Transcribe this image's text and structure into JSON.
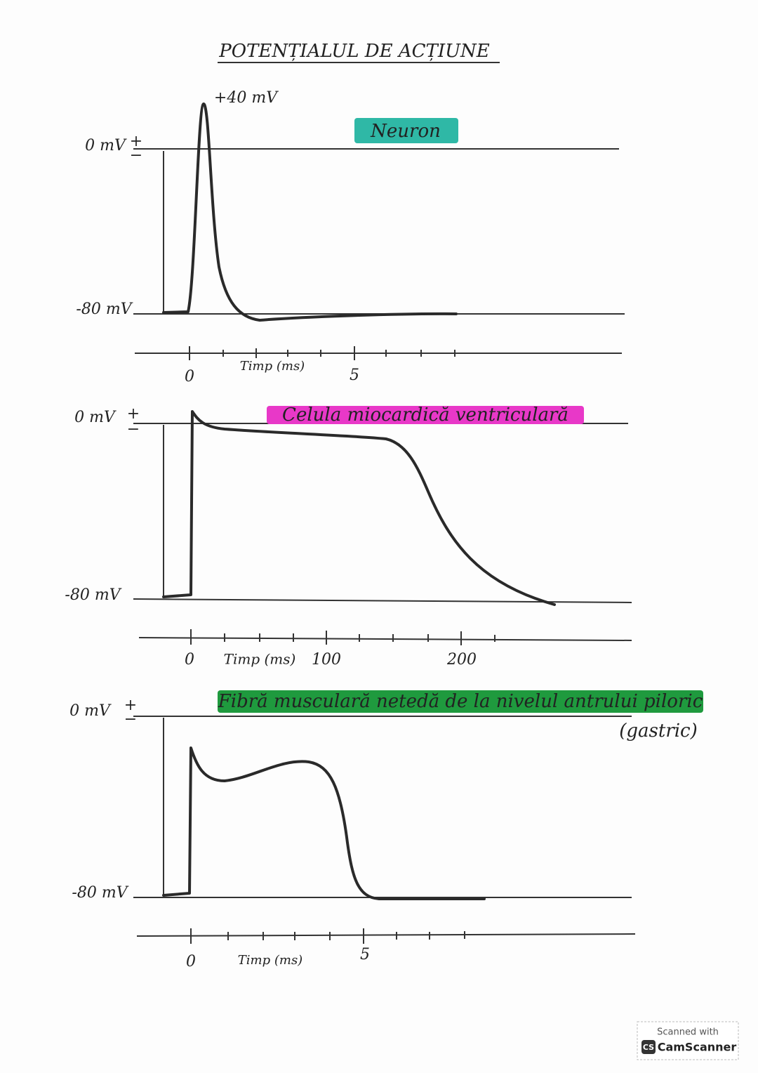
{
  "title": "POTENȚIALUL DE ACȚIUNE",
  "panels": [
    {
      "label": "Neuron",
      "peak_label": "+40 mV",
      "y_labels": [
        "0 mV",
        "-80 mV"
      ],
      "polarity": [
        "+",
        "−"
      ],
      "x_labels": [
        "0",
        "5"
      ],
      "x_title": "Timp (ms)"
    },
    {
      "label": "Celula miocardică ventriculară",
      "y_labels": [
        "0 mV",
        "-80 mV"
      ],
      "polarity": [
        "+",
        "−"
      ],
      "x_labels": [
        "0",
        "100",
        "200"
      ],
      "x_title": "Timp (ms)"
    },
    {
      "label": "Fibră musculară netedă de la nivelul antrului piloric",
      "note": "(gastric)",
      "y_labels": [
        "0 mV",
        "-80 mV"
      ],
      "polarity": [
        "+",
        "−"
      ],
      "x_labels": [
        "0",
        "5"
      ],
      "x_title": "Timp (ms)"
    }
  ],
  "footer": {
    "line1": "Scanned with",
    "logo": "CS",
    "brand": "CamScanner"
  }
}
